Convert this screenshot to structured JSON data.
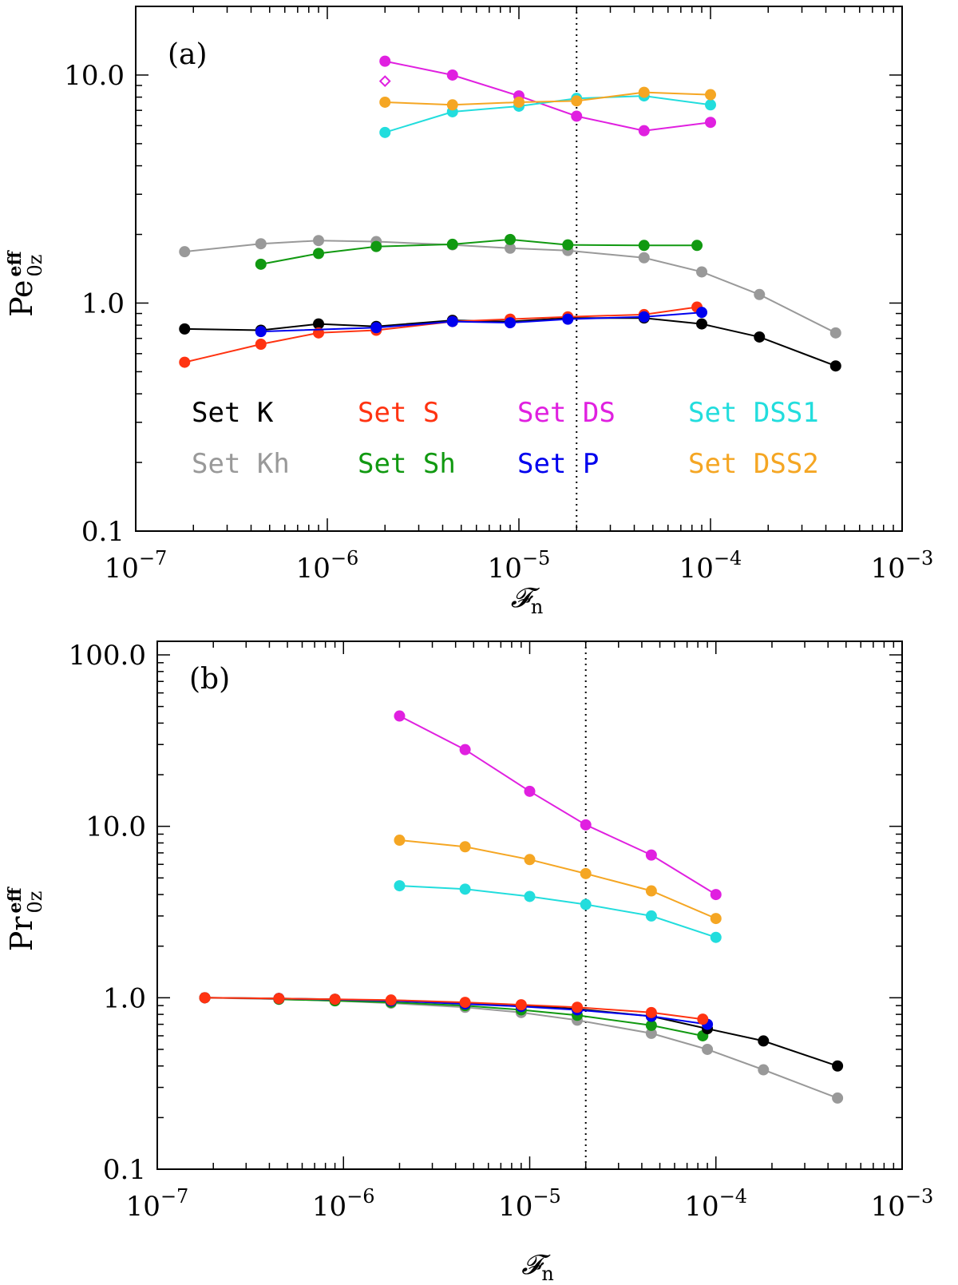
{
  "chart_data": [
    {
      "type": "line",
      "panel_label": "(a)",
      "xscale": "log",
      "yscale": "log",
      "xlabel": "𝓕",
      "xlabel_sub": "n",
      "ylabel": "Pe",
      "ylabel_sup": "eff",
      "ylabel_sub": "0z",
      "xlim": [
        1e-07,
        0.001
      ],
      "ylim": [
        0.1,
        20
      ],
      "vline_x": 2e-05,
      "xticks": [
        {
          "value": 1e-07,
          "base": "10",
          "exp": "−7"
        },
        {
          "value": 1e-06,
          "base": "10",
          "exp": "−6"
        },
        {
          "value": 1e-05,
          "base": "10",
          "exp": "−5"
        },
        {
          "value": 0.0001,
          "base": "10",
          "exp": "−4"
        },
        {
          "value": 0.001,
          "base": "10",
          "exp": "−3"
        }
      ],
      "yticks": [
        {
          "value": 0.1,
          "label": "0.1"
        },
        {
          "value": 1,
          "label": "1.0"
        },
        {
          "value": 10,
          "label": "10.0"
        }
      ],
      "extra_points": [
        {
          "name": "DS open diamond",
          "color": "#e020e0",
          "marker": "diamond-open",
          "x": 2e-06,
          "y": 9.4
        }
      ],
      "series": [
        {
          "name": "Set K",
          "color": "#000000",
          "x": [
            1.8e-07,
            4.5e-07,
            9e-07,
            1.8e-06,
            4.5e-06,
            9e-06,
            1.8e-05,
            4.5e-05,
            9e-05,
            0.00018,
            0.00045
          ],
          "y": [
            0.77,
            0.76,
            0.81,
            0.79,
            0.84,
            0.83,
            0.86,
            0.86,
            0.81,
            0.71,
            0.53
          ]
        },
        {
          "name": "Set Kh",
          "color": "#999999",
          "x": [
            1.8e-07,
            4.5e-07,
            9e-07,
            1.8e-06,
            4.5e-06,
            9e-06,
            1.8e-05,
            4.5e-05,
            9e-05,
            0.00018,
            0.00045
          ],
          "y": [
            1.68,
            1.82,
            1.88,
            1.86,
            1.8,
            1.74,
            1.7,
            1.58,
            1.37,
            1.09,
            0.74
          ]
        },
        {
          "name": "Set S",
          "color": "#ff3311",
          "x": [
            1.8e-07,
            4.5e-07,
            9e-07,
            1.8e-06,
            4.5e-06,
            9e-06,
            1.8e-05,
            4.5e-05,
            8.5e-05
          ],
          "y": [
            0.55,
            0.66,
            0.74,
            0.76,
            0.83,
            0.85,
            0.87,
            0.89,
            0.96
          ]
        },
        {
          "name": "Set Sh",
          "color": "#119911",
          "x": [
            4.5e-07,
            9e-07,
            1.8e-06,
            4.5e-06,
            9e-06,
            1.8e-05,
            4.5e-05,
            8.5e-05
          ],
          "y": [
            1.48,
            1.65,
            1.77,
            1.81,
            1.9,
            1.8,
            1.79,
            1.79
          ]
        },
        {
          "name": "Set DS",
          "color": "#e020e0",
          "x": [
            2e-06,
            4.5e-06,
            1e-05,
            2e-05,
            4.5e-05,
            0.0001
          ],
          "y": [
            11.5,
            10.0,
            8.1,
            6.6,
            5.7,
            6.2
          ]
        },
        {
          "name": "Set P",
          "color": "#0000ee",
          "x": [
            4.5e-07,
            1.8e-06,
            4.5e-06,
            9e-06,
            1.8e-05,
            4.5e-05,
            9e-05
          ],
          "y": [
            0.75,
            0.78,
            0.83,
            0.82,
            0.85,
            0.87,
            0.91
          ]
        },
        {
          "name": "Set DSS1",
          "color": "#22dddd",
          "x": [
            2e-06,
            4.5e-06,
            1e-05,
            2e-05,
            4.5e-05,
            0.0001
          ],
          "y": [
            5.6,
            6.9,
            7.3,
            7.9,
            8.1,
            7.4
          ]
        },
        {
          "name": "Set DSS2",
          "color": "#f5a623",
          "x": [
            2e-06,
            4.5e-06,
            1e-05,
            2e-05,
            4.5e-05,
            0.0001
          ],
          "y": [
            7.6,
            7.4,
            7.6,
            7.7,
            8.4,
            8.2
          ]
        }
      ],
      "legend": {
        "placement": "lower-center",
        "rows": [
          [
            {
              "text": "Set  K",
              "color": "#000000"
            },
            {
              "text": "Set  S",
              "color": "#ff3311"
            },
            {
              "text": "Set  DS",
              "color": "#e020e0"
            },
            {
              "text": "Set  DSS1",
              "color": "#22dddd"
            }
          ],
          [
            {
              "text": "Set  Kh",
              "color": "#999999"
            },
            {
              "text": "Set  Sh",
              "color": "#119911"
            },
            {
              "text": "Set  P",
              "color": "#0000ee"
            },
            {
              "text": "Set  DSS2",
              "color": "#f5a623"
            }
          ]
        ]
      }
    },
    {
      "type": "line",
      "panel_label": "(b)",
      "xscale": "log",
      "yscale": "log",
      "xlabel": "𝓕",
      "xlabel_sub": "n",
      "ylabel": "Pr",
      "ylabel_sup": "eff",
      "ylabel_sub": "0z",
      "xlim": [
        1e-07,
        0.001
      ],
      "ylim": [
        0.1,
        120
      ],
      "vline_x": 2e-05,
      "xticks": [
        {
          "value": 1e-07,
          "base": "10",
          "exp": "−7"
        },
        {
          "value": 1e-06,
          "base": "10",
          "exp": "−6"
        },
        {
          "value": 1e-05,
          "base": "10",
          "exp": "−5"
        },
        {
          "value": 0.0001,
          "base": "10",
          "exp": "−4"
        },
        {
          "value": 0.001,
          "base": "10",
          "exp": "−3"
        }
      ],
      "yticks": [
        {
          "value": 0.1,
          "label": "0.1"
        },
        {
          "value": 1,
          "label": "1.0"
        },
        {
          "value": 10,
          "label": "10.0"
        },
        {
          "value": 100,
          "label": "100.0"
        }
      ],
      "extra_points": [],
      "series": [
        {
          "name": "Set DS",
          "color": "#e020e0",
          "x": [
            2e-06,
            4.5e-06,
            1e-05,
            2e-05,
            4.5e-05,
            0.0001
          ],
          "y": [
            44,
            28,
            16,
            10.2,
            6.8,
            4.0
          ]
        },
        {
          "name": "Set DSS2",
          "color": "#f5a623",
          "x": [
            2e-06,
            4.5e-06,
            1e-05,
            2e-05,
            4.5e-05,
            0.0001
          ],
          "y": [
            8.3,
            7.6,
            6.4,
            5.3,
            4.2,
            2.9
          ]
        },
        {
          "name": "Set DSS1",
          "color": "#22dddd",
          "x": [
            2e-06,
            4.5e-06,
            1e-05,
            2e-05,
            4.5e-05,
            0.0001
          ],
          "y": [
            4.5,
            4.3,
            3.9,
            3.5,
            3.0,
            2.25
          ]
        },
        {
          "name": "Set Kh",
          "color": "#999999",
          "x": [
            1.8e-07,
            4.5e-07,
            9e-07,
            1.8e-06,
            4.5e-06,
            9e-06,
            1.8e-05,
            4.5e-05,
            9e-05,
            0.00018,
            0.00045
          ],
          "y": [
            1.0,
            0.98,
            0.96,
            0.93,
            0.88,
            0.82,
            0.74,
            0.62,
            0.5,
            0.38,
            0.26
          ]
        },
        {
          "name": "Set Sh",
          "color": "#119911",
          "x": [
            4.5e-07,
            9e-07,
            1.8e-06,
            4.5e-06,
            9e-06,
            1.8e-05,
            4.5e-05,
            8.5e-05
          ],
          "y": [
            0.98,
            0.96,
            0.94,
            0.9,
            0.85,
            0.79,
            0.69,
            0.6
          ]
        },
        {
          "name": "Set K",
          "color": "#000000",
          "x": [
            1.8e-07,
            4.5e-07,
            9e-07,
            1.8e-06,
            4.5e-06,
            9e-06,
            1.8e-05,
            4.5e-05,
            9e-05,
            0.00018,
            0.00045
          ],
          "y": [
            1.0,
            0.99,
            0.98,
            0.96,
            0.93,
            0.9,
            0.86,
            0.78,
            0.66,
            0.56,
            0.4
          ]
        },
        {
          "name": "Set P",
          "color": "#0000ee",
          "x": [
            4.5e-07,
            1.8e-06,
            4.5e-06,
            9e-06,
            1.8e-05,
            4.5e-05,
            9e-05
          ],
          "y": [
            0.99,
            0.96,
            0.92,
            0.89,
            0.85,
            0.78,
            0.7
          ]
        },
        {
          "name": "Set S",
          "color": "#ff3311",
          "x": [
            1.8e-07,
            4.5e-07,
            9e-07,
            1.8e-06,
            4.5e-06,
            9e-06,
            1.8e-05,
            4.5e-05,
            8.5e-05
          ],
          "y": [
            1.0,
            0.99,
            0.98,
            0.97,
            0.94,
            0.91,
            0.88,
            0.82,
            0.75
          ]
        }
      ],
      "legend": null
    }
  ]
}
